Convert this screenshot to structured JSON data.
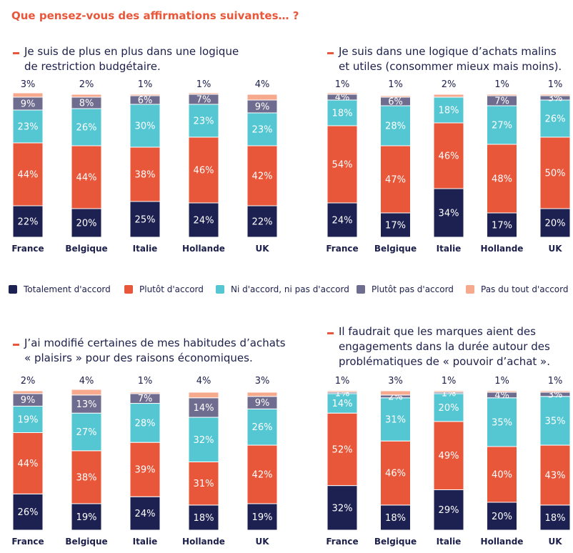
{
  "main_title": "Que pensez-vous des affirmations suivantes… ?",
  "colors": {
    "totalement": "#1d2152",
    "plutot": "#e9573a",
    "ni": "#55c7d3",
    "plutot_pas": "#6f6d8f",
    "pas_du_tout": "#f6a98c",
    "text_dark": "#1b1f4a",
    "accent": "#e9573a"
  },
  "legend": [
    {
      "label": "Totalement d'accord",
      "color": "#1d2152"
    },
    {
      "label": "Plutôt d'accord",
      "color": "#e9573a"
    },
    {
      "label": "Ni d'accord, ni pas d'accord",
      "color": "#55c7d3"
    },
    {
      "label": "Plutôt pas d'accord",
      "color": "#6f6d8f"
    },
    {
      "label": "Pas du tout d'accord",
      "color": "#f6a98c"
    }
  ],
  "chart_data": [
    {
      "type": "bar",
      "stacked": true,
      "title": "Je suis de plus en plus dans une logique de restriction budgétaire.",
      "title_lines": [
        "Je suis de plus en plus dans une logique",
        "de restriction budgétaire."
      ],
      "categories": [
        "France",
        "Belgique",
        "Italie",
        "Hollande",
        "UK"
      ],
      "series": [
        {
          "name": "Totalement d'accord",
          "values": [
            22,
            20,
            25,
            24,
            22
          ]
        },
        {
          "name": "Plutôt d'accord",
          "values": [
            44,
            44,
            38,
            46,
            42
          ]
        },
        {
          "name": "Ni d'accord, ni pas d'accord",
          "values": [
            23,
            26,
            30,
            23,
            23
          ]
        },
        {
          "name": "Plutôt pas d'accord",
          "values": [
            9,
            8,
            6,
            7,
            9
          ]
        },
        {
          "name": "Pas du tout d'accord",
          "values": [
            3,
            2,
            1,
            1,
            4
          ]
        }
      ],
      "ylim": [
        0,
        100
      ]
    },
    {
      "type": "bar",
      "stacked": true,
      "title": "Je suis dans une logique d’achats malins et utiles (consommer mieux mais moins).",
      "title_lines": [
        "Je suis dans une logique d’achats malins",
        "et utiles (consommer mieux mais moins)."
      ],
      "categories": [
        "France",
        "Belgique",
        "Italie",
        "Hollande",
        "UK"
      ],
      "series": [
        {
          "name": "Totalement d'accord",
          "values": [
            24,
            17,
            34,
            17,
            20
          ]
        },
        {
          "name": "Plutôt d'accord",
          "values": [
            54,
            47,
            46,
            48,
            50
          ]
        },
        {
          "name": "Ni d'accord, ni pas d'accord",
          "values": [
            18,
            28,
            18,
            27,
            26
          ]
        },
        {
          "name": "Plutôt pas d'accord",
          "values": [
            4,
            6,
            0,
            7,
            3
          ]
        },
        {
          "name": "Pas du tout d'accord",
          "values": [
            1,
            1,
            2,
            1,
            1
          ]
        }
      ],
      "ylim": [
        0,
        100
      ]
    },
    {
      "type": "bar",
      "stacked": true,
      "title": "J’ai modifié certaines de mes habitudes d’achats « plaisirs » pour des raisons économiques.",
      "title_lines": [
        "J’ai modifié certaines de mes habitudes d’achats",
        "« plaisirs » pour des raisons économiques."
      ],
      "categories": [
        "France",
        "Belgique",
        "Italie",
        "Hollande",
        "UK"
      ],
      "series": [
        {
          "name": "Totalement d'accord",
          "values": [
            26,
            19,
            24,
            18,
            19
          ]
        },
        {
          "name": "Plutôt d'accord",
          "values": [
            44,
            38,
            39,
            31,
            42
          ]
        },
        {
          "name": "Ni d'accord, ni pas d'accord",
          "values": [
            19,
            27,
            28,
            32,
            26
          ]
        },
        {
          "name": "Plutôt pas d'accord",
          "values": [
            9,
            13,
            7,
            14,
            9
          ]
        },
        {
          "name": "Pas du tout d'accord",
          "values": [
            2,
            4,
            1,
            4,
            3
          ]
        }
      ],
      "ylim": [
        0,
        100
      ]
    },
    {
      "type": "bar",
      "stacked": true,
      "title": "Il faudrait que les marques aient des engagements dans la durée autour des problématiques de « pouvoir d’achat ».",
      "title_lines": [
        "Il faudrait que les marques aient des",
        "engagements dans la durée autour des",
        "problématiques de « pouvoir d’achat »."
      ],
      "categories": [
        "France",
        "Belgique",
        "Italie",
        "Hollande",
        "UK"
      ],
      "series": [
        {
          "name": "Totalement d'accord",
          "values": [
            32,
            18,
            29,
            20,
            18
          ]
        },
        {
          "name": "Plutôt d'accord",
          "values": [
            52,
            46,
            49,
            40,
            43
          ]
        },
        {
          "name": "Ni d'accord, ni pas d'accord",
          "values": [
            14,
            31,
            20,
            35,
            35
          ]
        },
        {
          "name": "Plutôt pas d'accord",
          "values": [
            1,
            2,
            1,
            4,
            3
          ]
        },
        {
          "name": "Pas du tout d'accord",
          "values": [
            1,
            3,
            1,
            1,
            1
          ]
        }
      ],
      "ylim": [
        0,
        100
      ]
    }
  ]
}
